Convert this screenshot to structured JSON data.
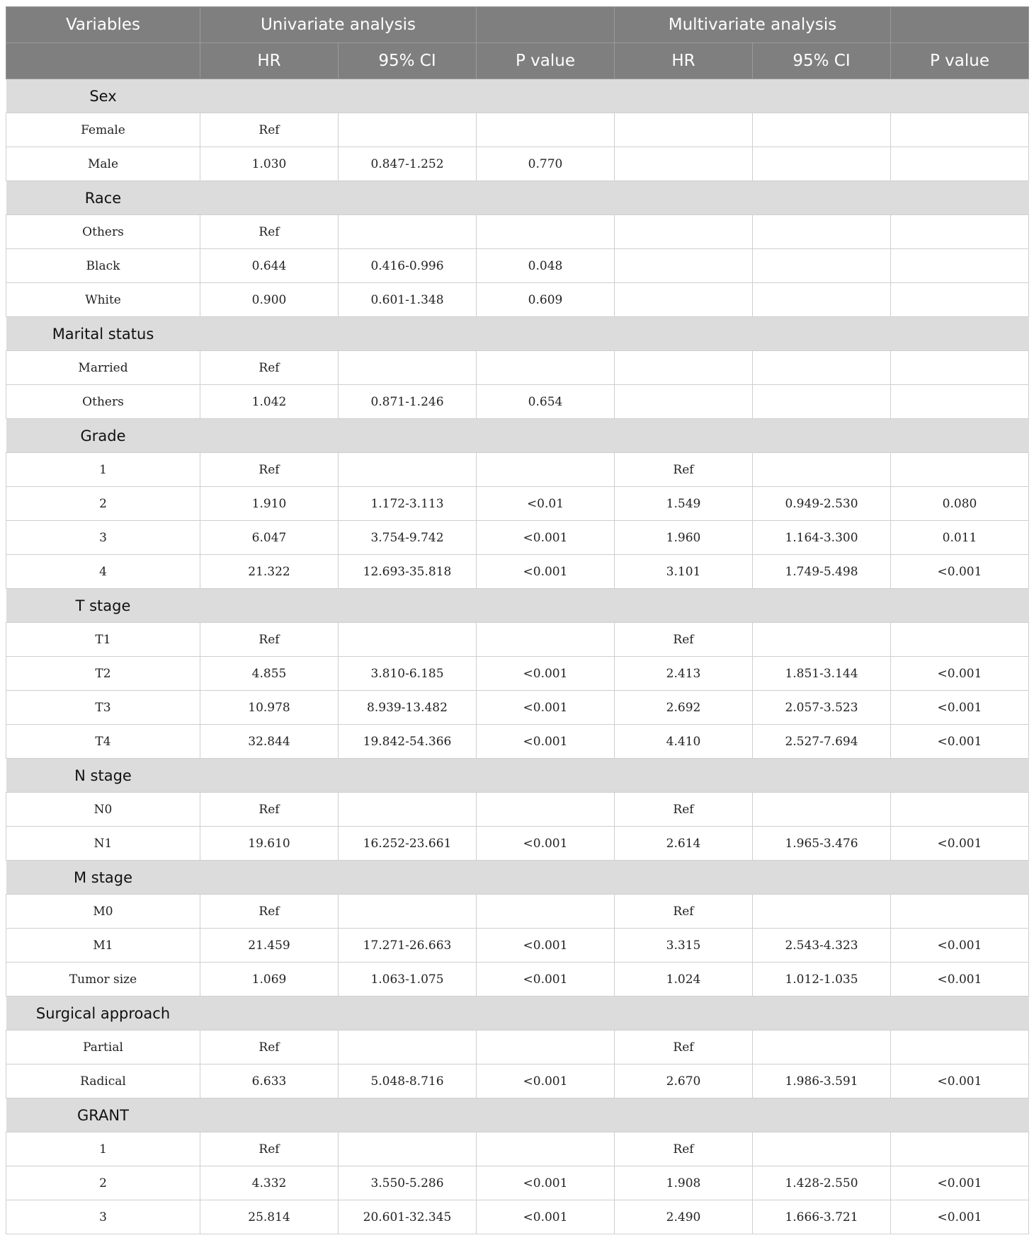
{
  "header": {
    "top": [
      "Variables",
      "Univariate analysis",
      "",
      "Multivariate analysis",
      ""
    ],
    "sub": [
      "",
      "HR",
      "95% CI",
      "P value",
      "HR",
      "95% CI",
      "P value"
    ]
  },
  "colors": {
    "header_bg": "#7f7f7f",
    "group_bg": "#dcdcdc"
  },
  "rows": [
    {
      "group": "Sex"
    },
    {
      "cells": [
        "Female",
        "Ref",
        "",
        "",
        "",
        "",
        ""
      ]
    },
    {
      "cells": [
        "Male",
        "1.030",
        "0.847-1.252",
        "0.770",
        "",
        "",
        ""
      ]
    },
    {
      "group": "Race"
    },
    {
      "cells": [
        "Others",
        "Ref",
        "",
        "",
        "",
        "",
        ""
      ]
    },
    {
      "cells": [
        "Black",
        "0.644",
        "0.416-0.996",
        "0.048",
        "",
        "",
        ""
      ]
    },
    {
      "cells": [
        "White",
        "0.900",
        "0.601-1.348",
        "0.609",
        "",
        "",
        ""
      ]
    },
    {
      "group": "Marital status"
    },
    {
      "cells": [
        "Married",
        "Ref",
        "",
        "",
        "",
        "",
        ""
      ]
    },
    {
      "cells": [
        "Others",
        "1.042",
        "0.871-1.246",
        "0.654",
        "",
        "",
        ""
      ]
    },
    {
      "group": "Grade"
    },
    {
      "cells": [
        "1",
        "Ref",
        "",
        "",
        "Ref",
        "",
        ""
      ]
    },
    {
      "cells": [
        "2",
        "1.910",
        "1.172-3.113",
        "<0.01",
        "1.549",
        "0.949-2.530",
        "0.080"
      ]
    },
    {
      "cells": [
        "3",
        "6.047",
        "3.754-9.742",
        "<0.001",
        "1.960",
        "1.164-3.300",
        "0.011"
      ]
    },
    {
      "cells": [
        "4",
        "21.322",
        "12.693-35.818",
        "<0.001",
        "3.101",
        "1.749-5.498",
        "<0.001"
      ]
    },
    {
      "group": "T stage"
    },
    {
      "cells": [
        "T1",
        "Ref",
        "",
        "",
        "Ref",
        "",
        ""
      ]
    },
    {
      "cells": [
        "T2",
        "4.855",
        "3.810-6.185",
        "<0.001",
        "2.413",
        "1.851-3.144",
        "<0.001"
      ]
    },
    {
      "cells": [
        "T3",
        "10.978",
        "8.939-13.482",
        "<0.001",
        "2.692",
        "2.057-3.523",
        "<0.001"
      ]
    },
    {
      "cells": [
        "T4",
        "32.844",
        "19.842-54.366",
        "<0.001",
        "4.410",
        "2.527-7.694",
        "<0.001"
      ]
    },
    {
      "group": "N stage"
    },
    {
      "cells": [
        "N0",
        "Ref",
        "",
        "",
        "Ref",
        "",
        ""
      ]
    },
    {
      "cells": [
        "N1",
        "19.610",
        "16.252-23.661",
        "<0.001",
        "2.614",
        "1.965-3.476",
        "<0.001"
      ]
    },
    {
      "group": "M stage"
    },
    {
      "cells": [
        "M0",
        "Ref",
        "",
        "",
        "Ref",
        "",
        ""
      ]
    },
    {
      "cells": [
        "M1",
        "21.459",
        "17.271-26.663",
        "<0.001",
        "3.315",
        "2.543-4.323",
        "<0.001"
      ]
    },
    {
      "cells": [
        "Tumor size",
        "1.069",
        "1.063-1.075",
        "<0.001",
        "1.024",
        "1.012-1.035",
        "<0.001"
      ]
    },
    {
      "group": "Surgical approach"
    },
    {
      "cells": [
        "Partial",
        "Ref",
        "",
        "",
        "Ref",
        "",
        ""
      ]
    },
    {
      "cells": [
        "Radical",
        "6.633",
        "5.048-8.716",
        "<0.001",
        "2.670",
        "1.986-3.591",
        "<0.001"
      ]
    },
    {
      "group": "GRANT"
    },
    {
      "cells": [
        "1",
        "Ref",
        "",
        "",
        "Ref",
        "",
        ""
      ]
    },
    {
      "cells": [
        "2",
        "4.332",
        "3.550-5.286",
        "<0.001",
        "1.908",
        "1.428-2.550",
        "<0.001"
      ]
    },
    {
      "cells": [
        "3",
        "25.814",
        "20.601-32.345",
        "<0.001",
        "2.490",
        "1.666-3.721",
        "<0.001"
      ]
    }
  ]
}
